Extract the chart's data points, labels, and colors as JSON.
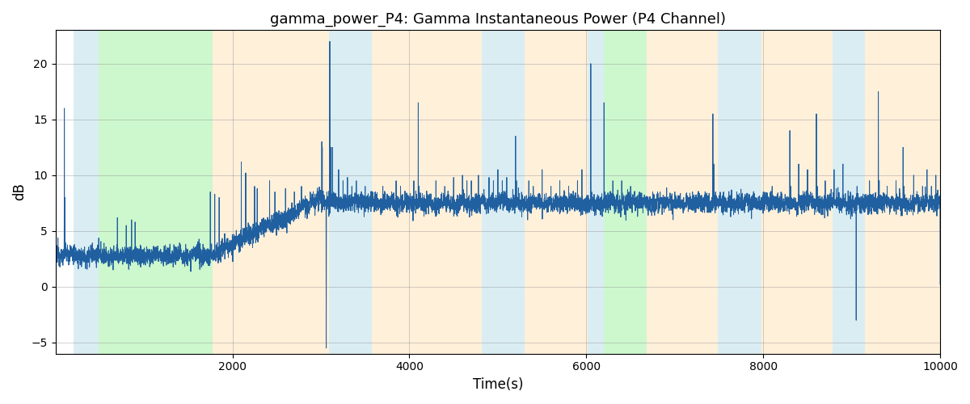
{
  "title": "gamma_power_P4: Gamma Instantaneous Power (P4 Channel)",
  "xlabel": "Time(s)",
  "ylabel": "dB",
  "xlim": [
    0,
    10000
  ],
  "ylim": [
    -6,
    23
  ],
  "yticks": [
    -5,
    0,
    5,
    10,
    15,
    20
  ],
  "xticks": [
    2000,
    4000,
    6000,
    8000,
    10000
  ],
  "line_color": "#2060a0",
  "line_width": 0.7,
  "figsize": [
    12,
    5
  ],
  "dpi": 100,
  "bg_regions": [
    {
      "xmin": 200,
      "xmax": 490,
      "color": "#add8e6",
      "alpha": 0.45
    },
    {
      "xmin": 490,
      "xmax": 1780,
      "color": "#90ee90",
      "alpha": 0.45
    },
    {
      "xmin": 1780,
      "xmax": 3090,
      "color": "#ffdead",
      "alpha": 0.45
    },
    {
      "xmin": 3090,
      "xmax": 3580,
      "color": "#add8e6",
      "alpha": 0.45
    },
    {
      "xmin": 3580,
      "xmax": 4820,
      "color": "#ffdead",
      "alpha": 0.45
    },
    {
      "xmin": 4820,
      "xmax": 5300,
      "color": "#add8e6",
      "alpha": 0.45
    },
    {
      "xmin": 5300,
      "xmax": 6020,
      "color": "#ffdead",
      "alpha": 0.45
    },
    {
      "xmin": 6020,
      "xmax": 6200,
      "color": "#add8e6",
      "alpha": 0.45
    },
    {
      "xmin": 6200,
      "xmax": 6680,
      "color": "#90ee90",
      "alpha": 0.45
    },
    {
      "xmin": 6680,
      "xmax": 7490,
      "color": "#ffdead",
      "alpha": 0.45
    },
    {
      "xmin": 7490,
      "xmax": 7980,
      "color": "#add8e6",
      "alpha": 0.45
    },
    {
      "xmin": 7980,
      "xmax": 8780,
      "color": "#ffdead",
      "alpha": 0.45
    },
    {
      "xmin": 8780,
      "xmax": 9150,
      "color": "#add8e6",
      "alpha": 0.45
    },
    {
      "xmin": 9150,
      "xmax": 10100,
      "color": "#ffdead",
      "alpha": 0.45
    }
  ]
}
